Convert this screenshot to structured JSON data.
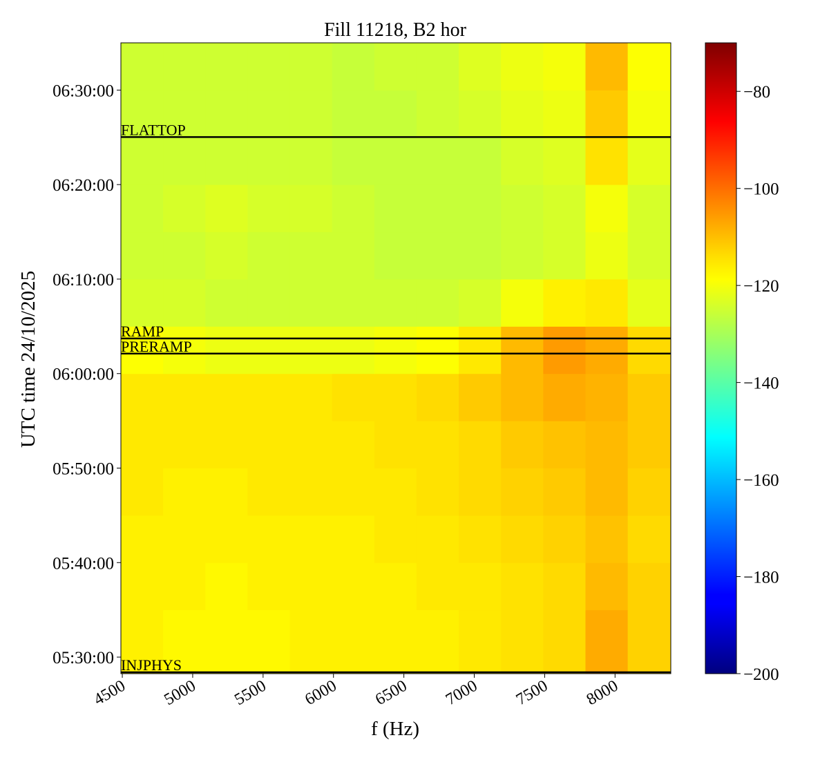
{
  "chart_data": {
    "type": "heatmap",
    "title": "Fill 11218, B2 hor",
    "x_label": "f (Hz)",
    "y_label": "UTC time 24/10/2025",
    "xlim": [
      4490,
      8396
    ],
    "xticks": [
      4500,
      5000,
      5500,
      6000,
      6500,
      7000,
      7500,
      8000
    ],
    "ylim": [
      "05:28:15",
      "06:35:00"
    ],
    "yticks": [
      "05:30:00",
      "05:40:00",
      "05:50:00",
      "06:00:00",
      "06:10:00",
      "06:20:00",
      "06:30:00"
    ],
    "x_edges": [
      4490,
      4790,
      5090,
      5390,
      5690,
      5990,
      6290,
      6590,
      6890,
      7190,
      7490,
      7790,
      8090,
      8396
    ],
    "y_edges": [
      "05:28:15",
      "05:35:00",
      "05:40:00",
      "05:45:00",
      "05:50:00",
      "05:55:00",
      "06:00:00",
      "06:05:00",
      "06:10:00",
      "06:15:00",
      "06:20:00",
      "06:25:00",
      "06:30:00",
      "06:35:00"
    ],
    "values": [
      [
        -117,
        -118,
        -118,
        -118,
        -117,
        -117,
        -117,
        -117,
        -116,
        -115,
        -114,
        -108,
        -113
      ],
      [
        -117,
        -117,
        -118,
        -117,
        -117,
        -117,
        -117,
        -116,
        -116,
        -115,
        -114,
        -110,
        -113
      ],
      [
        -117,
        -117,
        -117,
        -117,
        -117,
        -117,
        -116,
        -116,
        -115,
        -114,
        -113,
        -111,
        -114
      ],
      [
        -116,
        -117,
        -117,
        -116,
        -116,
        -116,
        -116,
        -115,
        -114,
        -113,
        -112,
        -110,
        -113
      ],
      [
        -116,
        -116,
        -116,
        -116,
        -116,
        -116,
        -115,
        -115,
        -114,
        -112,
        -111,
        -110,
        -112
      ],
      [
        -116,
        -116,
        -116,
        -116,
        -116,
        -115,
        -115,
        -114,
        -112,
        -110,
        -108,
        -109,
        -112
      ],
      [
        -119,
        -120,
        -121,
        -121,
        -121,
        -121,
        -120,
        -119,
        -116,
        -110,
        -106,
        -108,
        -114
      ],
      [
        -124,
        -124,
        -125,
        -125,
        -125,
        -125,
        -125,
        -125,
        -124,
        -120,
        -117,
        -116,
        -122
      ],
      [
        -125,
        -125,
        -124,
        -125,
        -125,
        -125,
        -126,
        -126,
        -126,
        -125,
        -124,
        -121,
        -124
      ],
      [
        -125,
        -124,
        -123,
        -124,
        -124,
        -125,
        -126,
        -126,
        -126,
        -125,
        -124,
        -120,
        -124
      ],
      [
        -125,
        -125,
        -125,
        -125,
        -125,
        -126,
        -126,
        -126,
        -126,
        -124,
        -123,
        -115,
        -122
      ],
      [
        -125,
        -125,
        -125,
        -125,
        -125,
        -126,
        -126,
        -125,
        -124,
        -122,
        -121,
        -112,
        -120
      ],
      [
        -125,
        -125,
        -125,
        -125,
        -125,
        -126,
        -125,
        -125,
        -123,
        -121,
        -120,
        -110,
        -119
      ]
    ],
    "colormap": "jet",
    "clim": [
      -200,
      -70
    ],
    "cticks": [
      {
        "value": -200,
        "label": "−200"
      },
      {
        "value": -180,
        "label": "−180"
      },
      {
        "value": -160,
        "label": "−160"
      },
      {
        "value": -140,
        "label": "−140"
      },
      {
        "value": -120,
        "label": "−120"
      },
      {
        "value": -100,
        "label": "−100"
      },
      {
        "value": -80,
        "label": "−80"
      }
    ],
    "events": [
      {
        "label": "INJPHYS",
        "time": "05:28:24"
      },
      {
        "label": "PRERAMP",
        "time": "06:02:07"
      },
      {
        "label": "RAMP",
        "time": "06:03:43"
      },
      {
        "label": "FLATTOP",
        "time": "06:25:02"
      }
    ]
  }
}
